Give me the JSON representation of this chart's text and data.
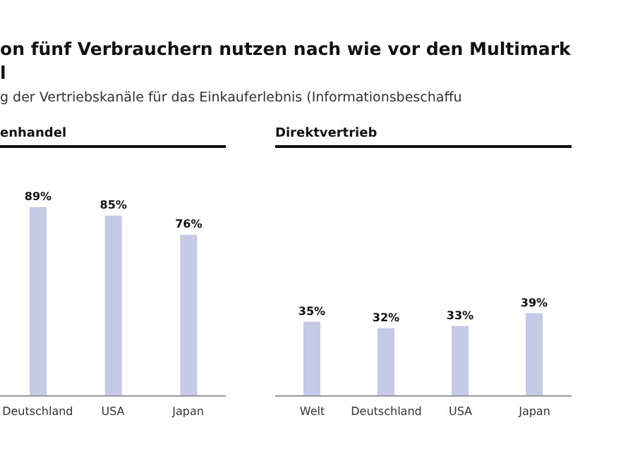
{
  "chart_data": [
    {
      "type": "bar",
      "title": "enhandel",
      "categories": [
        "Deutschland",
        "USA",
        "Japan"
      ],
      "values": [
        89,
        85,
        76
      ],
      "value_labels": [
        "89%",
        "85%",
        "76%"
      ],
      "color": "#c5cbe6",
      "tick_labels": "x",
      "subtitle": "g der Vertriebskanäle für das Einkauferlebnis (Informationsbeschaffu",
      "annotations": [
        "on fünf Verbrauchern nutzen nach wie vor den Multimark",
        "l"
      ]
    },
    {
      "type": "bar",
      "title": "Direktvertrieb",
      "categories": [
        "Welt",
        "Deutschland",
        "USA",
        "Japan"
      ],
      "values": [
        35,
        32,
        33,
        39
      ],
      "value_labels": [
        "35%",
        "32%",
        "33%",
        "39%"
      ],
      "color": "#c5cbe6",
      "tick_labels": "x"
    }
  ]
}
